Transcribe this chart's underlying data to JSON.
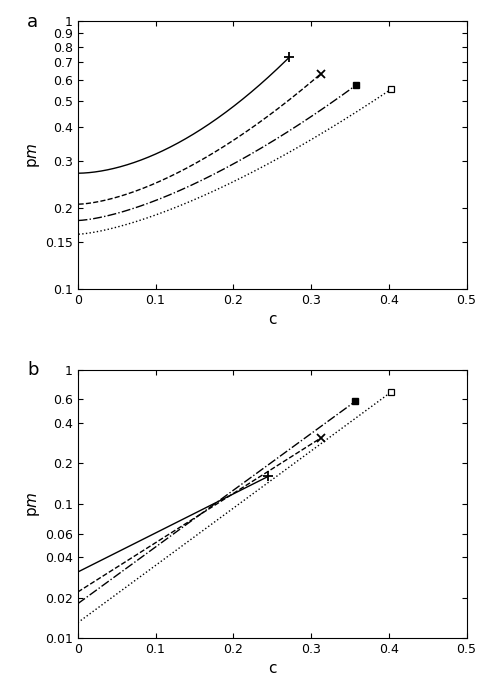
{
  "xlabel": "c",
  "xlim": [
    0,
    0.5
  ],
  "panel_a": {
    "label": "a",
    "ylim": [
      0.1,
      1.0
    ],
    "yticks": [
      0.1,
      0.15,
      0.2,
      0.3,
      0.4,
      0.5,
      0.6,
      0.7,
      0.8,
      0.9,
      1.0
    ],
    "ytick_labels": [
      "0.1",
      "0.15",
      "0.2",
      "0.3",
      "0.4",
      "0.5",
      "0.6",
      "0.7",
      "0.8",
      "0.9",
      "1"
    ],
    "xticks": [
      0,
      0.1,
      0.2,
      0.3,
      0.4,
      0.5
    ],
    "curves": [
      {
        "style": "-",
        "y0": 0.27,
        "alpha": 1.8,
        "x_end": 0.272,
        "marker": "+",
        "filled": true
      },
      {
        "style": "--",
        "y0": 0.207,
        "alpha": 1.6,
        "x_end": 0.313,
        "marker": "x",
        "filled": true
      },
      {
        "style": "-.",
        "y0": 0.18,
        "alpha": 1.5,
        "x_end": 0.358,
        "marker": "s",
        "filled": true
      },
      {
        "style": ":",
        "y0": 0.16,
        "alpha": 1.45,
        "x_end": 0.403,
        "marker": "s",
        "filled": false
      }
    ]
  },
  "panel_b": {
    "label": "b",
    "ylim": [
      0.01,
      1.0
    ],
    "yticks": [
      0.01,
      0.02,
      0.04,
      0.06,
      0.1,
      0.2,
      0.4,
      0.6,
      1.0
    ],
    "ytick_labels": [
      "0.01",
      "0.02",
      "0.04",
      "0.06",
      "0.1",
      "0.2",
      "0.4",
      "0.6",
      "1"
    ],
    "xticks": [
      0,
      0.1,
      0.2,
      0.3,
      0.4,
      0.5
    ],
    "curves": [
      {
        "style": "-",
        "y0": 0.031,
        "k": 7.0,
        "x_end": 0.245,
        "marker": "+",
        "filled": true
      },
      {
        "style": "--",
        "y0": 0.022,
        "k": 8.5,
        "x_end": 0.313,
        "marker": "x",
        "filled": true
      },
      {
        "style": "-.",
        "y0": 0.018,
        "k": 9.5,
        "x_end": 0.357,
        "marker": "s",
        "filled": true
      },
      {
        "style": ":",
        "y0": 0.013,
        "k": 10.5,
        "x_end": 0.403,
        "marker": "s",
        "filled": false
      }
    ]
  }
}
